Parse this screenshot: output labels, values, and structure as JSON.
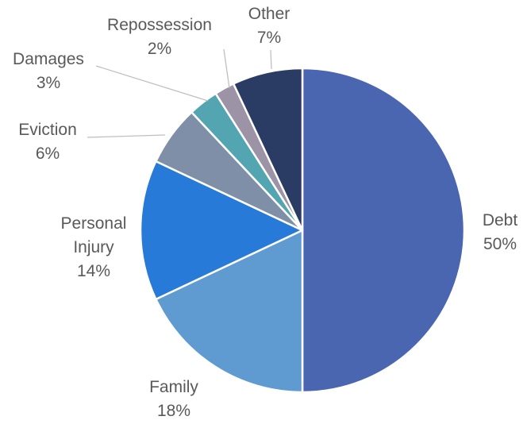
{
  "chart_data": {
    "type": "pie",
    "title": "",
    "slices": [
      {
        "label": "Debt",
        "value": 50,
        "pct_label": "50%",
        "color": "#4A66B0"
      },
      {
        "label": "Family",
        "value": 18,
        "pct_label": "18%",
        "color": "#5F9BD1"
      },
      {
        "label": "Personal Injury",
        "label_lines": [
          "Personal",
          "Injury"
        ],
        "value": 14,
        "pct_label": "14%",
        "color": "#287AD8"
      },
      {
        "label": "Eviction",
        "value": 6,
        "pct_label": "6%",
        "color": "#7F8FA8"
      },
      {
        "label": "Damages",
        "value": 3,
        "pct_label": "3%",
        "color": "#52A5B1"
      },
      {
        "label": "Repossession",
        "value": 2,
        "pct_label": "2%",
        "color": "#9D93A6"
      },
      {
        "label": "Other",
        "value": 7,
        "pct_label": "7%",
        "color": "#2A3B64"
      }
    ],
    "start": "12 o'clock",
    "direction": "clockwise",
    "legend": "none",
    "data_labels": "category name and percentage"
  }
}
